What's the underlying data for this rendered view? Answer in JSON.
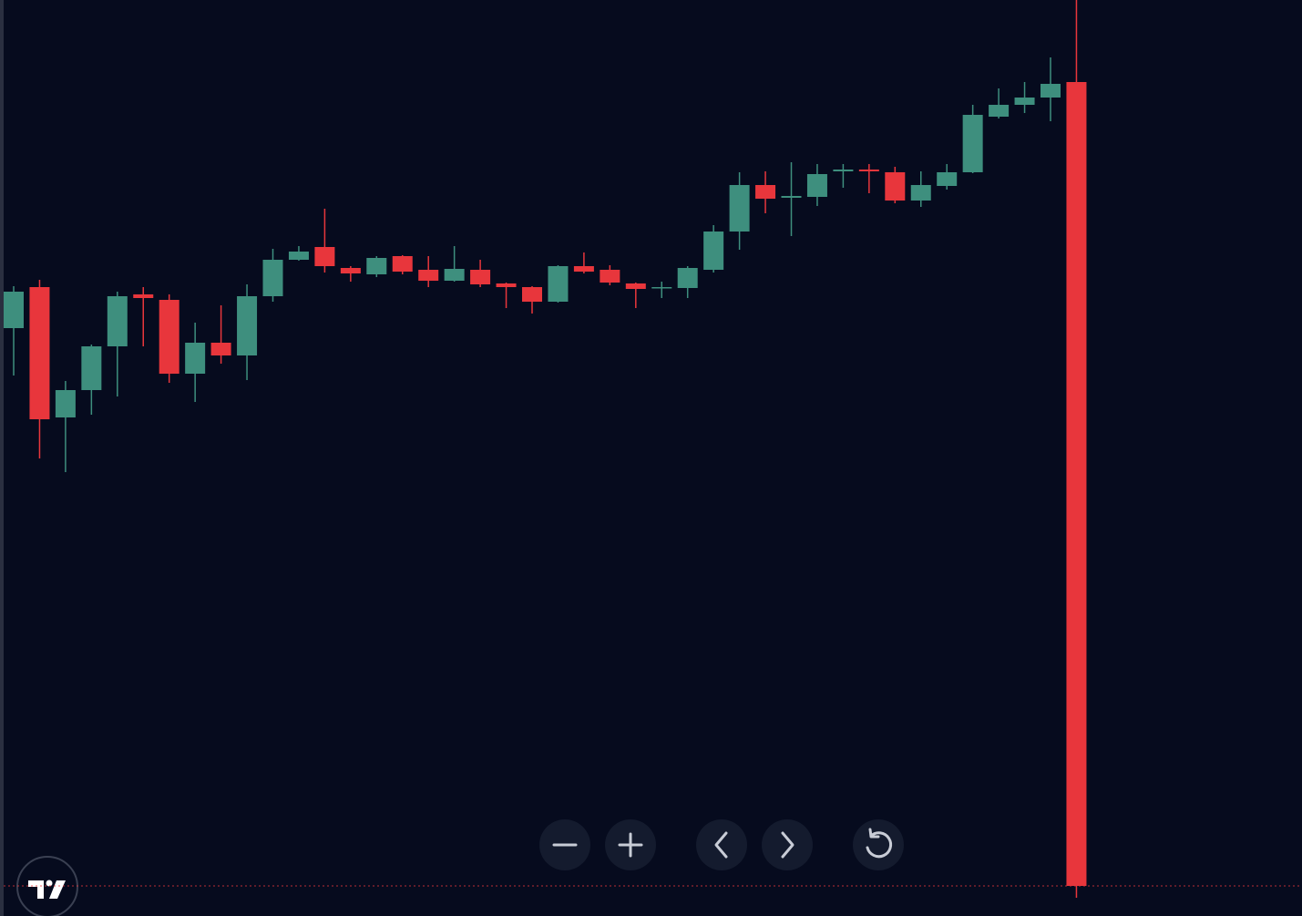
{
  "chart_data": {
    "type": "candlestick",
    "open": [
      645,
      690,
      547,
      577,
      625,
      682,
      676,
      595,
      629,
      615,
      680,
      720,
      734,
      711,
      704,
      724,
      709,
      697,
      709,
      694,
      690,
      674,
      713,
      709,
      694,
      689,
      689,
      709,
      751,
      802,
      788,
      789,
      817,
      819,
      816,
      785,
      801,
      816,
      877,
      890,
      898,
      915
    ],
    "high": [
      691,
      698,
      587,
      627,
      685,
      690,
      682,
      651,
      670,
      693,
      732,
      735,
      776,
      713,
      724,
      725,
      724,
      735,
      720,
      695,
      691,
      714,
      728,
      714,
      695,
      696,
      713,
      758,
      816,
      817,
      827,
      825,
      825,
      825,
      822,
      817,
      825,
      890,
      908,
      915,
      942,
      1005
    ],
    "low": [
      593,
      502,
      487,
      550,
      570,
      625,
      585,
      564,
      606,
      588,
      674,
      719,
      706,
      696,
      701,
      704,
      690,
      696,
      690,
      667,
      661,
      673,
      705,
      692,
      667,
      678,
      678,
      706,
      731,
      771,
      746,
      779,
      799,
      793,
      782,
      778,
      797,
      815,
      875,
      881,
      872,
      20
    ],
    "close": [
      685,
      545,
      577,
      625,
      680,
      678,
      595,
      629,
      615,
      680,
      720,
      729,
      713,
      705,
      722,
      707,
      697,
      710,
      693,
      690,
      674,
      713,
      707,
      695,
      688,
      690,
      711,
      751,
      802,
      787,
      790,
      814,
      819,
      817,
      785,
      802,
      816,
      879,
      890,
      898,
      913,
      33
    ],
    "up_color": "#3e8f7e",
    "down_color": "#e8363c",
    "ylim": [
      0,
      1005
    ]
  }
}
